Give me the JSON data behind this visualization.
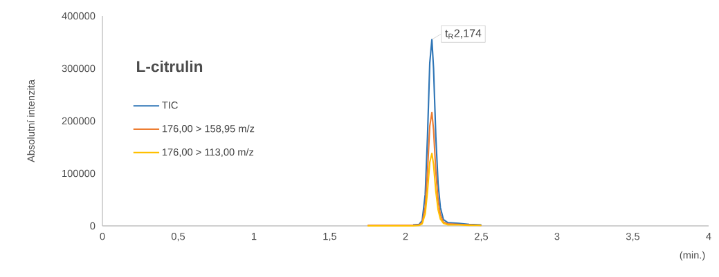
{
  "chart_data": {
    "type": "line",
    "title": "L-citrulin",
    "xlabel": "(min.)",
    "ylabel": "Absolutní intenzita",
    "xlim": [
      0,
      4
    ],
    "ylim": [
      0,
      400000
    ],
    "xticks": [
      0,
      {
        "value": 0.5,
        "label": "0,5"
      },
      1,
      {
        "value": 1.5,
        "label": "1,5"
      },
      2,
      {
        "value": 2.5,
        "label": "2,5"
      },
      3,
      {
        "value": 3.5,
        "label": "3,5"
      },
      4
    ],
    "yticks": [
      0,
      100000,
      200000,
      300000,
      400000
    ],
    "legend": "left",
    "annotations": [
      {
        "text": "t$_{R}$2,174",
        "x": 2.174,
        "y": 355000
      }
    ],
    "x": [
      1.75,
      1.85,
      1.95,
      2.05,
      2.09,
      2.11,
      2.13,
      2.145,
      2.16,
      2.174,
      2.185,
      2.2,
      2.215,
      2.23,
      2.25,
      2.28,
      2.35,
      2.42,
      2.5
    ],
    "series": [
      {
        "name": "TIC",
        "color": "#2e75b6",
        "values": [
          null,
          null,
          null,
          2000,
          3000,
          10000,
          60000,
          170000,
          310000,
          355000,
          300000,
          170000,
          80000,
          35000,
          12000,
          6000,
          5000,
          3000,
          2000
        ]
      },
      {
        "name": "176,00 > 158,95 m/z",
        "color": "#ed7d31",
        "values": [
          1000,
          1000,
          1000,
          1000,
          2000,
          6000,
          36000,
          104000,
          190000,
          216000,
          183000,
          104000,
          49000,
          21000,
          7000,
          4000,
          3000,
          2000,
          1000
        ]
      },
      {
        "name": "176,00 > 113,00 m/z",
        "color": "#ffc000",
        "values": [
          0,
          0,
          0,
          0,
          1000,
          4000,
          23000,
          66000,
          121000,
          138000,
          117000,
          66000,
          31000,
          13000,
          5000,
          2000,
          2000,
          1000,
          1000
        ]
      }
    ]
  }
}
